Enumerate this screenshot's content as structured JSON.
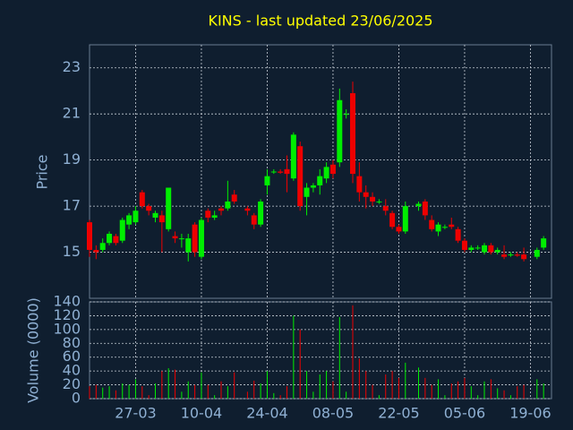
{
  "chart_data": [
    {
      "type": "candlestick",
      "title": "KINS - last updated 23/06/2025",
      "y_label": "Price",
      "up_color": "#00ee00",
      "down_color": "#ee0000",
      "grid": true,
      "categories": [
        "18-03",
        "19-03",
        "20-03",
        "21-03",
        "24-03",
        "25-03",
        "26-03",
        "27-03",
        "28-03",
        "31-03",
        "01-04",
        "02-04",
        "03-04",
        "04-04",
        "07-04",
        "08-04",
        "09-04",
        "10-04",
        "11-04",
        "14-04",
        "15-04",
        "16-04",
        "17-04",
        "18-04",
        "21-04",
        "22-04",
        "23-04",
        "24-04",
        "25-04",
        "28-04",
        "29-04",
        "30-04",
        "01-05",
        "02-05",
        "05-05",
        "06-05",
        "07-05",
        "08-05",
        "09-05",
        "12-05",
        "13-05",
        "14-05",
        "15-05",
        "16-05",
        "19-05",
        "20-05",
        "21-05",
        "22-05",
        "23-05",
        "26-05",
        "27-05",
        "28-05",
        "29-05",
        "30-05",
        "02-06",
        "03-06",
        "04-06",
        "05-06",
        "06-06",
        "09-06",
        "10-06",
        "11-06",
        "12-06",
        "13-06",
        "16-06",
        "17-06",
        "18-06",
        "19-06",
        "20-06",
        "23-06"
      ],
      "open": [
        16.3,
        15.1,
        15.1,
        15.4,
        15.7,
        15.5,
        16.2,
        16.3,
        17.6,
        17.0,
        16.5,
        16.6,
        16.0,
        15.7,
        15.6,
        15.0,
        16.2,
        14.8,
        16.8,
        16.5,
        16.9,
        16.9,
        17.5,
        null,
        16.9,
        16.6,
        16.2,
        17.9,
        18.5,
        18.5,
        18.6,
        18.2,
        19.6,
        17.4,
        17.8,
        17.9,
        18.2,
        18.8,
        18.9,
        21.0,
        21.9,
        18.3,
        17.6,
        17.4,
        17.2,
        17.0,
        16.7,
        16.1,
        15.9,
        null,
        17.0,
        17.2,
        16.4,
        15.9,
        16.1,
        16.2,
        16.0,
        15.5,
        15.1,
        15.2,
        15.0,
        15.3,
        15.0,
        14.9,
        14.9,
        14.9,
        14.9,
        null,
        14.8,
        15.2
      ],
      "high": [
        16.4,
        15.3,
        15.6,
        15.9,
        15.8,
        16.5,
        16.7,
        17.0,
        17.7,
        17.1,
        16.8,
        16.8,
        17.8,
        15.9,
        15.8,
        15.8,
        16.3,
        16.5,
        16.9,
        16.8,
        17.0,
        18.1,
        17.7,
        null,
        17.0,
        16.7,
        17.3,
        18.6,
        18.6,
        18.6,
        19.2,
        20.2,
        19.8,
        18.0,
        18.0,
        18.6,
        18.9,
        19.0,
        22.1,
        21.2,
        22.4,
        18.9,
        17.9,
        17.6,
        17.3,
        17.3,
        16.8,
        16.2,
        17.2,
        null,
        17.2,
        17.3,
        16.6,
        16.3,
        16.2,
        16.5,
        16.1,
        15.6,
        15.3,
        15.3,
        15.4,
        15.4,
        15.2,
        15.3,
        15.0,
        15.0,
        15.2,
        null,
        15.2,
        15.7
      ],
      "low": [
        14.8,
        14.7,
        15.0,
        15.3,
        15.3,
        15.4,
        16.0,
        16.2,
        16.9,
        16.6,
        16.3,
        15.0,
        15.9,
        15.4,
        15.2,
        14.6,
        14.8,
        14.7,
        16.3,
        16.4,
        16.6,
        16.8,
        17.1,
        null,
        16.6,
        16.0,
        16.1,
        17.5,
        18.4,
        18.4,
        17.6,
        18.1,
        16.8,
        16.6,
        17.6,
        17.5,
        18.0,
        18.2,
        18.7,
        20.8,
        18.0,
        17.2,
        16.9,
        17.0,
        17.1,
        16.6,
        16.0,
        15.8,
        15.8,
        null,
        16.8,
        16.4,
        15.9,
        15.7,
        16.0,
        16.0,
        15.4,
        15.0,
        15.0,
        15.1,
        14.9,
        14.9,
        14.9,
        14.7,
        14.8,
        14.8,
        14.6,
        null,
        14.7,
        15.1
      ],
      "close": [
        15.1,
        15.0,
        15.4,
        15.8,
        15.4,
        16.4,
        16.6,
        16.8,
        17.0,
        16.8,
        16.7,
        16.3,
        17.8,
        15.6,
        15.6,
        15.6,
        15.0,
        16.4,
        16.5,
        16.6,
        16.8,
        17.2,
        17.2,
        null,
        16.8,
        16.2,
        17.2,
        18.3,
        18.5,
        18.45,
        18.4,
        20.1,
        17.0,
        17.8,
        17.9,
        18.3,
        18.7,
        18.4,
        21.6,
        21.0,
        18.4,
        17.6,
        17.4,
        17.2,
        17.2,
        16.8,
        16.1,
        15.9,
        17.0,
        null,
        17.1,
        16.6,
        16.0,
        16.2,
        16.1,
        16.1,
        15.5,
        15.1,
        15.2,
        15.2,
        15.3,
        15.0,
        15.1,
        14.8,
        14.9,
        14.85,
        14.7,
        null,
        15.1,
        15.6
      ],
      "ylim": [
        13,
        24
      ],
      "yticks": [
        15,
        17,
        19,
        21,
        23
      ]
    },
    {
      "type": "bar",
      "y_label": "Volume (0000)",
      "values": [
        18,
        20,
        16,
        18,
        12,
        22,
        20,
        28,
        18,
        5,
        22,
        40,
        44,
        42,
        10,
        25,
        20,
        38,
        20,
        5,
        25,
        18,
        38,
        null,
        10,
        26,
        22,
        40,
        8,
        5,
        18,
        120,
        100,
        40,
        10,
        35,
        40,
        25,
        118,
        10,
        135,
        58,
        40,
        20,
        5,
        35,
        40,
        30,
        52,
        null,
        45,
        30,
        20,
        28,
        5,
        22,
        25,
        30,
        18,
        5,
        25,
        28,
        15,
        12,
        5,
        18,
        20,
        null,
        28,
        22
      ],
      "ylim": [
        0,
        140
      ],
      "yticks": [
        0,
        20,
        40,
        60,
        80,
        100,
        120,
        140
      ],
      "xticks": [
        "27-03",
        "10-04",
        "24-04",
        "08-05",
        "22-05",
        "05-06",
        "19-06"
      ]
    }
  ]
}
